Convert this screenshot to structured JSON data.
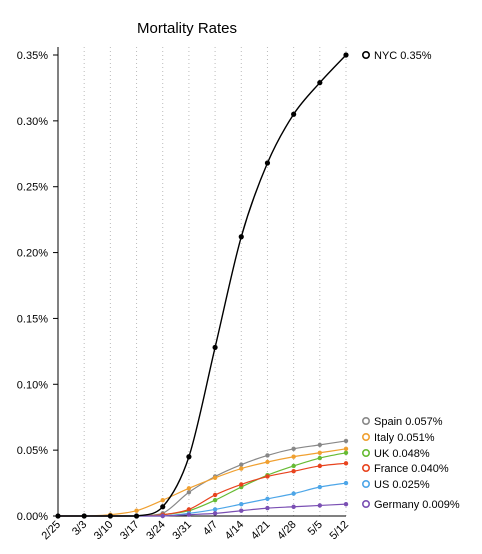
{
  "chart_data": {
    "type": "line",
    "title": "Mortality Rates",
    "xlabel": "",
    "ylabel": "",
    "categories": [
      "2/25",
      "3/3",
      "3/10",
      "3/17",
      "3/24",
      "3/31",
      "4/7",
      "4/14",
      "4/21",
      "4/28",
      "5/5",
      "5/12"
    ],
    "y_ticks": [
      "0.00%",
      "0.05%",
      "0.10%",
      "0.15%",
      "0.20%",
      "0.25%",
      "0.30%",
      "0.35%"
    ],
    "ylim": [
      0,
      0.35
    ],
    "grid": "vertical dotted",
    "legend_placement": "right, beside line ends",
    "series": [
      {
        "name": "NYC",
        "label": "NYC 0.35%",
        "color": "#000000",
        "values": [
          0,
          0,
          0,
          0,
          0.007,
          0.045,
          0.128,
          0.212,
          0.268,
          0.305,
          0.329,
          0.35
        ]
      },
      {
        "name": "Spain",
        "label": "Spain 0.057%",
        "color": "#888888",
        "values": [
          0,
          0,
          0,
          0,
          0.002,
          0.018,
          0.03,
          0.039,
          0.046,
          0.051,
          0.054,
          0.057
        ]
      },
      {
        "name": "Italy",
        "label": "Italy 0.051%",
        "color": "#F0A030",
        "values": [
          0,
          0,
          0.001,
          0.004,
          0.012,
          0.021,
          0.029,
          0.036,
          0.041,
          0.045,
          0.048,
          0.051
        ]
      },
      {
        "name": "UK",
        "label": "UK 0.048%",
        "color": "#66BB33",
        "values": [
          0,
          0,
          0,
          0,
          0.001,
          0.004,
          0.012,
          0.022,
          0.031,
          0.038,
          0.044,
          0.048
        ]
      },
      {
        "name": "France",
        "label": "France 0.040%",
        "color": "#E8431E",
        "values": [
          0,
          0,
          0,
          0,
          0.001,
          0.005,
          0.016,
          0.024,
          0.03,
          0.034,
          0.038,
          0.04
        ]
      },
      {
        "name": "US",
        "label": "US 0.025%",
        "color": "#4DA6E8",
        "values": [
          0,
          0,
          0,
          0,
          0,
          0.002,
          0.005,
          0.009,
          0.013,
          0.017,
          0.022,
          0.025
        ]
      },
      {
        "name": "Germany",
        "label": "Germany 0.009%",
        "color": "#7A4FB3",
        "values": [
          0,
          0,
          0,
          0,
          0,
          0.001,
          0.002,
          0.004,
          0.006,
          0.007,
          0.008,
          0.009
        ]
      }
    ]
  }
}
